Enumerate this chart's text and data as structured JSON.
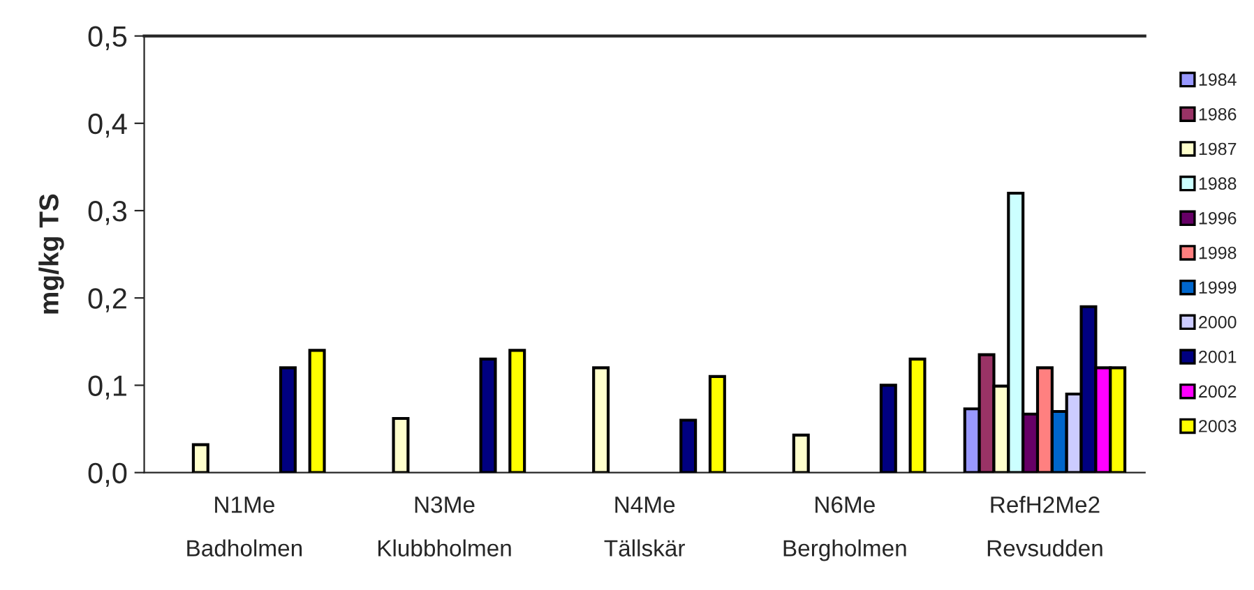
{
  "chart_data": {
    "type": "bar",
    "ylabel": "mg/kg TS",
    "categories": [
      "N1Me\nBadholmen",
      "N3Me\nKlubbholmen",
      "N4Me\nTällskär",
      "N6Me\nBergholmen",
      "RefH2Me2\nRevsudden"
    ],
    "series": [
      {
        "name": "1984",
        "color": "#9999ff",
        "values": [
          null,
          null,
          null,
          null,
          0.073
        ]
      },
      {
        "name": "1986",
        "color": "#993366",
        "values": [
          null,
          null,
          null,
          null,
          0.135
        ]
      },
      {
        "name": "1987",
        "color": "#ffffcc",
        "values": [
          0.032,
          0.062,
          0.12,
          0.043,
          0.099
        ]
      },
      {
        "name": "1988",
        "color": "#ccffff",
        "values": [
          null,
          null,
          null,
          null,
          0.32
        ]
      },
      {
        "name": "1996",
        "color": "#660066",
        "values": [
          null,
          null,
          null,
          null,
          0.067
        ]
      },
      {
        "name": "1998",
        "color": "#ff8080",
        "values": [
          null,
          null,
          null,
          null,
          0.12
        ]
      },
      {
        "name": "1999",
        "color": "#0066cc",
        "values": [
          null,
          null,
          null,
          null,
          0.07
        ]
      },
      {
        "name": "2000",
        "color": "#ccccff",
        "values": [
          null,
          null,
          null,
          null,
          0.09
        ]
      },
      {
        "name": "2001",
        "color": "#000080",
        "values": [
          0.12,
          0.13,
          0.06,
          0.1,
          0.19
        ]
      },
      {
        "name": "2002",
        "color": "#ff00ff",
        "values": [
          null,
          null,
          null,
          null,
          0.12
        ]
      },
      {
        "name": "2003",
        "color": "#ffff00",
        "values": [
          0.14,
          0.14,
          0.11,
          0.13,
          0.12
        ]
      }
    ],
    "ylim": [
      0,
      0.5
    ],
    "yticks": [
      {
        "value": 0,
        "label": "0,0"
      },
      {
        "value": 0.1,
        "label": "0,1"
      },
      {
        "value": 0.2,
        "label": "0,2"
      },
      {
        "value": 0.3,
        "label": "0,3"
      },
      {
        "value": 0.4,
        "label": "0,4"
      },
      {
        "value": 0.5,
        "label": "0,5"
      }
    ],
    "grid": false,
    "legend": "right"
  }
}
